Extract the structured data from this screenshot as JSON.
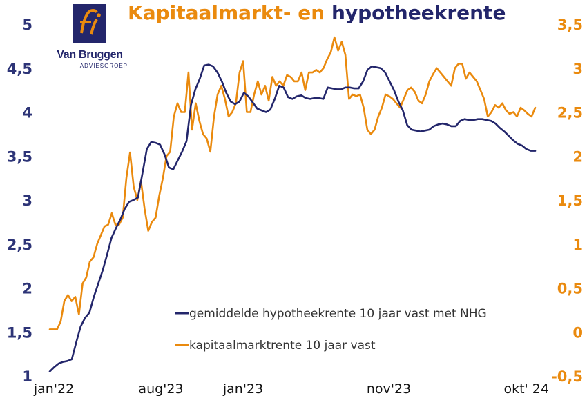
{
  "logo": {
    "name": "Van Bruggen",
    "sub": "ADVIESGROEP",
    "mark": "fi"
  },
  "colors": {
    "hypotheek": "#23266b",
    "kapitaal": "#ea8a0e",
    "left_axis": "#2d3477",
    "right_axis": "#ea8a0e"
  },
  "chart_data": {
    "type": "line",
    "title_part1": "Kapitaalmarkt- en",
    "title_part2": "hypotheekrente",
    "x_labels": [
      "jan'22",
      "aug'23",
      "jan'23",
      "nov'23",
      "okt' 24"
    ],
    "y_left": {
      "ticks": [
        "1",
        "1,5",
        "2",
        "2,5",
        "3",
        "3,5",
        "4",
        "4,5",
        "5"
      ],
      "min": 1,
      "max": 5
    },
    "y_right": {
      "ticks": [
        "-0,5",
        "0",
        "0,5",
        "1",
        "1,5",
        "2",
        "2,5",
        "3",
        "3,5"
      ],
      "min": -0.5,
      "max": 3.5
    },
    "grid": false,
    "legend_position": "bottom-right",
    "series": [
      {
        "name": "gemiddelde hypotheekrente 10 jaar vast met NHG",
        "axis": "left",
        "values": [
          1.05,
          1.1,
          1.14,
          1.16,
          1.17,
          1.19,
          1.38,
          1.56,
          1.66,
          1.72,
          1.9,
          2.05,
          2.2,
          2.38,
          2.57,
          2.68,
          2.78,
          2.9,
          2.98,
          3.0,
          3.03,
          3.3,
          3.58,
          3.66,
          3.65,
          3.63,
          3.52,
          3.37,
          3.35,
          3.45,
          3.55,
          3.67,
          4.08,
          4.26,
          4.38,
          4.53,
          4.54,
          4.52,
          4.45,
          4.35,
          4.22,
          4.12,
          4.09,
          4.12,
          4.22,
          4.18,
          4.11,
          4.04,
          4.02,
          4.0,
          4.03,
          4.15,
          4.3,
          4.28,
          4.17,
          4.15,
          4.18,
          4.19,
          4.16,
          4.15,
          4.16,
          4.16,
          4.15,
          4.28,
          4.27,
          4.26,
          4.26,
          4.28,
          4.28,
          4.27,
          4.27,
          4.35,
          4.48,
          4.52,
          4.51,
          4.5,
          4.45,
          4.35,
          4.25,
          4.12,
          4.02,
          3.85,
          3.8,
          3.79,
          3.78,
          3.79,
          3.8,
          3.84,
          3.86,
          3.87,
          3.86,
          3.84,
          3.84,
          3.9,
          3.92,
          3.91,
          3.91,
          3.92,
          3.92,
          3.91,
          3.9,
          3.87,
          3.82,
          3.78,
          3.73,
          3.68,
          3.64,
          3.62,
          3.58,
          3.56,
          3.56
        ]
      },
      {
        "name": "kapitaalmarktrente 10 jaar vast",
        "axis": "right",
        "values": [
          0.03,
          0.03,
          0.03,
          0.12,
          0.35,
          0.42,
          0.35,
          0.4,
          0.2,
          0.55,
          0.62,
          0.8,
          0.85,
          1.0,
          1.1,
          1.2,
          1.22,
          1.35,
          1.22,
          1.22,
          1.3,
          1.75,
          2.04,
          1.65,
          1.5,
          1.72,
          1.4,
          1.15,
          1.25,
          1.3,
          1.55,
          1.75,
          2.0,
          2.05,
          2.45,
          2.6,
          2.5,
          2.5,
          2.95,
          2.3,
          2.6,
          2.4,
          2.25,
          2.2,
          2.05,
          2.45,
          2.7,
          2.8,
          2.65,
          2.45,
          2.5,
          2.6,
          2.95,
          3.08,
          2.5,
          2.5,
          2.7,
          2.85,
          2.7,
          2.8,
          2.63,
          2.9,
          2.8,
          2.85,
          2.8,
          2.92,
          2.9,
          2.85,
          2.85,
          2.95,
          2.75,
          2.95,
          2.95,
          2.98,
          2.95,
          3.0,
          3.1,
          3.18,
          3.35,
          3.2,
          3.3,
          3.15,
          2.65,
          2.7,
          2.68,
          2.7,
          2.55,
          2.3,
          2.25,
          2.3,
          2.45,
          2.55,
          2.7,
          2.68,
          2.65,
          2.6,
          2.55,
          2.65,
          2.75,
          2.78,
          2.73,
          2.63,
          2.6,
          2.7,
          2.85,
          2.93,
          3.0,
          2.95,
          2.9,
          2.85,
          2.8,
          3.0,
          3.05,
          3.05,
          2.88,
          2.95,
          2.9,
          2.85,
          2.75,
          2.65,
          2.45,
          2.5,
          2.58,
          2.55,
          2.6,
          2.52,
          2.48,
          2.5,
          2.45,
          2.55,
          2.52,
          2.48,
          2.45,
          2.55
        ]
      }
    ]
  }
}
